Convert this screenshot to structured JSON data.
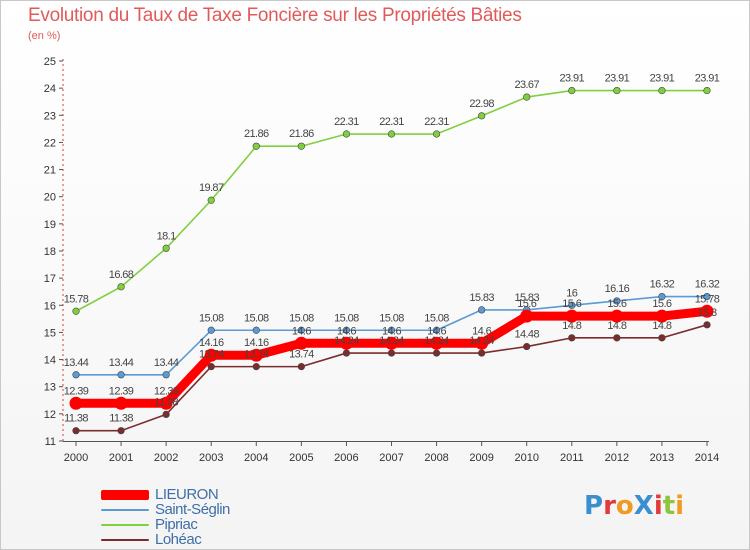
{
  "title": "Evolution du Taux de Taxe Foncière sur les Propriétés Bâties",
  "unit_label": "(en %)",
  "logo": {
    "text": "Proxiti",
    "letters": [
      {
        "ch": "P",
        "color": "#3a8fd0"
      },
      {
        "ch": "r",
        "color": "#e23b3b"
      },
      {
        "ch": "o",
        "color": "#f29a1f"
      },
      {
        "ch": "X",
        "color": "#3a8fd0"
      },
      {
        "ch": "i",
        "color": "#e23b3b"
      },
      {
        "ch": "t",
        "color": "#8cc63f"
      },
      {
        "ch": "i",
        "color": "#f29a1f"
      }
    ]
  },
  "chart_data": {
    "type": "line",
    "title": "Evolution du Taux de Taxe Foncière sur les Propriétés Bâties",
    "ylabel": "(en %)",
    "xlabel": "",
    "ylim": [
      11,
      25
    ],
    "yticks": [
      11,
      12,
      13,
      14,
      15,
      16,
      17,
      18,
      19,
      20,
      21,
      22,
      23,
      24,
      25
    ],
    "categories": [
      "2000",
      "2001",
      "2002",
      "2003",
      "2004",
      "2005",
      "2006",
      "2007",
      "2008",
      "2009",
      "2010",
      "2011",
      "2012",
      "2013",
      "2014"
    ],
    "grid": false,
    "legend_position": "bottom-left",
    "series": [
      {
        "name": "LIEURON",
        "color": "#ff0000",
        "thick": true,
        "values": [
          12.39,
          12.39,
          12.39,
          14.16,
          14.16,
          14.6,
          14.6,
          14.6,
          14.6,
          14.6,
          15.6,
          15.6,
          15.6,
          15.6,
          15.78
        ],
        "labels": [
          "12.39",
          "12.39",
          "12.39",
          "14.16",
          "14.16",
          "14.6",
          "14.6",
          "14.6",
          "14.6",
          "14.6",
          "15.6",
          "15.6",
          "15.6",
          "15.6",
          "15.78"
        ]
      },
      {
        "name": "Saint-Séglin",
        "color": "#5b9bd5",
        "thick": false,
        "values": [
          13.44,
          13.44,
          13.44,
          15.08,
          15.08,
          15.08,
          15.08,
          15.08,
          15.08,
          15.83,
          15.83,
          16,
          16.16,
          16.32,
          16.32
        ],
        "labels": [
          "13.44",
          "13.44",
          "13.44",
          "15.08",
          "15.08",
          "15.08",
          "15.08",
          "15.08",
          "15.08",
          "15.83",
          "15.83",
          "16",
          "16.16",
          "16.32",
          "16.32"
        ]
      },
      {
        "name": "Pipriac",
        "color": "#7fcf3f",
        "thick": false,
        "values": [
          15.78,
          16.68,
          18.1,
          19.87,
          21.86,
          21.86,
          22.31,
          22.31,
          22.31,
          22.98,
          23.67,
          23.91,
          23.91,
          23.91,
          23.91
        ],
        "labels": [
          "15.78",
          "16.68",
          "18.1",
          "19.87",
          "21.86",
          "21.86",
          "22.31",
          "22.31",
          "22.31",
          "22.98",
          "23.67",
          "23.91",
          "23.91",
          "23.91",
          "23.91"
        ]
      },
      {
        "name": "Lohéac",
        "color": "#7b2c2c",
        "thick": false,
        "values": [
          11.38,
          11.38,
          11.98,
          13.74,
          13.74,
          13.74,
          14.24,
          14.24,
          14.24,
          14.24,
          14.48,
          14.8,
          14.8,
          14.8,
          15.28
        ],
        "labels": [
          "11.38",
          "11.38",
          "11.98",
          "13.74",
          "13.74",
          "13.74",
          "14.24",
          "14.24",
          "14.24",
          "14.24",
          "14.48",
          "14.8",
          "14.8",
          "14.8",
          "15.3"
        ]
      }
    ]
  }
}
